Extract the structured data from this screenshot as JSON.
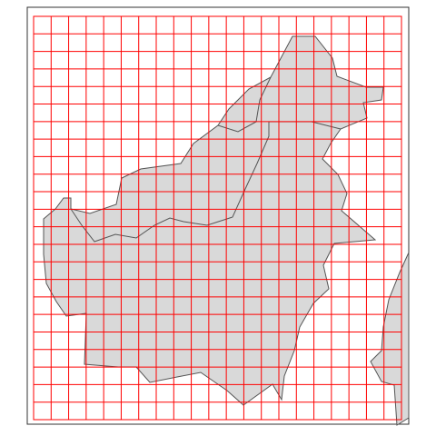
{
  "map": {
    "land_fill": "#d9d9d9",
    "land_stroke": "#555555",
    "grid_color": "#ff0000",
    "frame_color": "#333333",
    "background": "#ffffff",
    "grid": {
      "columns": 21,
      "rows": 23
    }
  }
}
